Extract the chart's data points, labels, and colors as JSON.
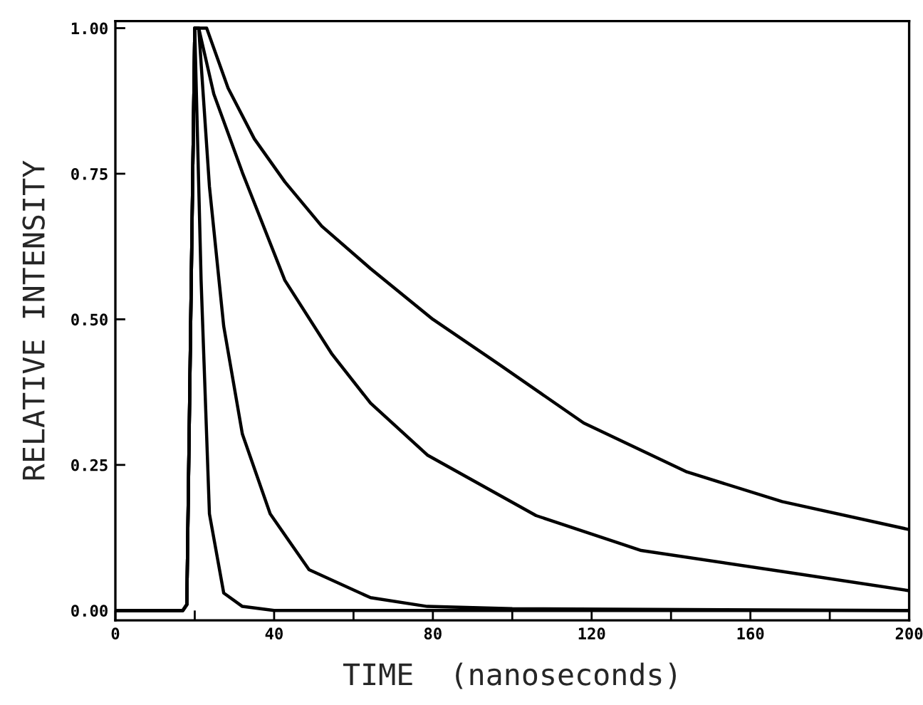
{
  "chart_data": {
    "type": "line",
    "xlabel": "TIME  (nanoseconds)",
    "ylabel": "RELATIVE INTENSITY",
    "xlim": [
      0,
      200
    ],
    "ylim": [
      -0.017,
      1.012
    ],
    "xticks": [
      0,
      {
        "value": 20,
        "label": null
      },
      40,
      {
        "value": 60,
        "label": null
      },
      80,
      {
        "value": 100,
        "label": null
      },
      120,
      {
        "value": 140,
        "label": null
      },
      160,
      {
        "value": 180,
        "label": null
      },
      200
    ],
    "yticks": [
      {
        "value": 0,
        "label": "0.00"
      },
      {
        "value": 0.25,
        "label": "0.25"
      },
      {
        "value": 0.5,
        "label": "0.50"
      },
      {
        "value": 0.75,
        "label": "0.75"
      },
      {
        "value": 1,
        "label": "1.00"
      }
    ],
    "grid": false,
    "marker": "none",
    "line_style": "solid",
    "series": [
      {
        "color": "#000000",
        "x": [
          0,
          17,
          18,
          20,
          22,
          23,
          28.4,
          35,
          42.7,
          52,
          64.3,
          80,
          96.6,
          118,
          144,
          168,
          200
        ],
        "values": [
          0,
          0,
          0.01,
          1.0,
          1.0,
          1.0,
          0.897,
          0.81,
          0.736,
          0.66,
          0.587,
          0.5,
          0.423,
          0.322,
          0.238,
          0.187,
          0.139
        ]
      },
      {
        "color": "#000000",
        "x": [
          0,
          17,
          18,
          20,
          21,
          24.8,
          32,
          42.7,
          54.6,
          64.3,
          78.6,
          106,
          132.5,
          168,
          200
        ],
        "values": [
          0,
          0,
          0.01,
          1.0,
          1.0,
          0.887,
          0.752,
          0.567,
          0.44,
          0.356,
          0.267,
          0.163,
          0.103,
          0.067,
          0.034
        ]
      },
      {
        "color": "#000000",
        "x": [
          0,
          17,
          18,
          20,
          21,
          23.7,
          27.3,
          32,
          39,
          48.8,
          64.3,
          78.6,
          100,
          200
        ],
        "values": [
          0,
          0,
          0.01,
          1.0,
          1.0,
          0.728,
          0.488,
          0.303,
          0.166,
          0.07,
          0.022,
          0.007,
          0.003,
          0
        ]
      },
      {
        "color": "#000000",
        "x": [
          0,
          17,
          18,
          20,
          21.6,
          23.7,
          27.3,
          32,
          40,
          200
        ],
        "values": [
          0,
          0,
          0.01,
          1.0,
          0.567,
          0.166,
          0.03,
          0.007,
          0,
          0
        ]
      }
    ]
  }
}
